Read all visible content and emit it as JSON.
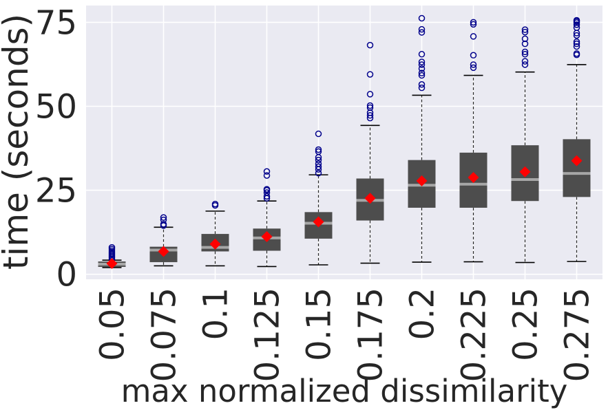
{
  "chart_data": {
    "type": "box",
    "xlabel": "max normalized dissimilarity",
    "ylabel": "time (seconds)",
    "ylim": [
      -1.5,
      80
    ],
    "yticks": [
      0,
      25,
      50,
      75
    ],
    "grid": true,
    "background": "#eaeaf2",
    "colors": {
      "box_fill": "#4d4d4d",
      "median": "#a6a6a6",
      "mean_marker": "#ff0000",
      "outlier": "#00008b",
      "whisker": "#262626"
    },
    "categories": [
      "0.05",
      "0.075",
      "0.1",
      "0.125",
      "0.15",
      "0.175",
      "0.2",
      "0.225",
      "0.25",
      "0.275"
    ],
    "boxes": [
      {
        "category": "0.05",
        "whisker_low": 2.0,
        "q1": 2.2,
        "median": 3.0,
        "q3": 3.8,
        "whisker_high": 4.2,
        "mean": 3.2,
        "outliers": [
          4.5,
          5.0,
          5.4,
          5.8,
          6.2,
          6.6,
          7.0,
          7.5,
          8.0
        ]
      },
      {
        "category": "0.075",
        "whisker_low": 2.5,
        "q1": 3.6,
        "median": 7.2,
        "q3": 8.2,
        "whisker_high": 14.0,
        "mean": 6.8,
        "outliers": [
          14.5,
          14.9,
          16.2,
          16.9
        ]
      },
      {
        "category": "0.1",
        "whisker_low": 2.5,
        "q1": 6.8,
        "median": 8.0,
        "q3": 12.0,
        "whisker_high": 18.8,
        "mean": 9.0,
        "outliers": [
          20.5,
          20.9
        ]
      },
      {
        "category": "0.125",
        "whisker_low": 2.3,
        "q1": 7.0,
        "median": 10.8,
        "q3": 13.6,
        "whisker_high": 21.8,
        "mean": 11.2,
        "outliers": [
          22.6,
          23.2,
          24.3,
          25.0,
          25.3,
          29.4,
          30.6
        ]
      },
      {
        "category": "0.15",
        "whisker_low": 2.8,
        "q1": 10.6,
        "median": 15.2,
        "q3": 18.5,
        "whisker_high": 29.6,
        "mean": 15.6,
        "outliers": [
          30.1,
          31.2,
          32.0,
          32.9,
          34.0,
          34.8,
          36.5,
          37.1,
          41.8
        ]
      },
      {
        "category": "0.175",
        "whisker_low": 3.3,
        "q1": 16.0,
        "median": 22.0,
        "q3": 28.5,
        "whisker_high": 44.3,
        "mean": 22.6,
        "outliers": [
          46.5,
          47.3,
          48.1,
          49.6,
          50.2,
          53.6,
          59.5,
          68.2
        ]
      },
      {
        "category": "0.2",
        "whisker_low": 3.6,
        "q1": 19.8,
        "median": 26.5,
        "q3": 34.0,
        "whisker_high": 53.3,
        "mean": 27.8,
        "outliers": [
          55.5,
          56.5,
          59.2,
          59.9,
          61.2,
          62.4,
          63.2,
          65.5,
          72.0,
          72.9,
          76.2
        ]
      },
      {
        "category": "0.225",
        "whisker_low": 3.7,
        "q1": 19.8,
        "median": 26.8,
        "q3": 36.2,
        "whisker_high": 59.2,
        "mean": 28.8,
        "outliers": [
          61.5,
          62.4,
          65.2,
          70.8,
          74.4,
          75.0
        ]
      },
      {
        "category": "0.25",
        "whisker_low": 3.5,
        "q1": 21.8,
        "median": 28.2,
        "q3": 38.4,
        "whisker_high": 60.2,
        "mean": 30.5,
        "outliers": [
          62.4,
          63.4,
          65.5,
          66.2,
          68.6,
          70.1,
          72.1,
          72.8
        ]
      },
      {
        "category": "0.275",
        "whisker_low": 3.8,
        "q1": 23.0,
        "median": 30.0,
        "q3": 40.2,
        "whisker_high": 62.4,
        "mean": 33.8,
        "outliers": [
          65.3,
          65.7,
          67.8,
          68.6,
          69.2,
          71.1,
          71.8,
          73.4,
          74.3,
          74.9,
          75.3,
          75.6
        ]
      }
    ]
  }
}
